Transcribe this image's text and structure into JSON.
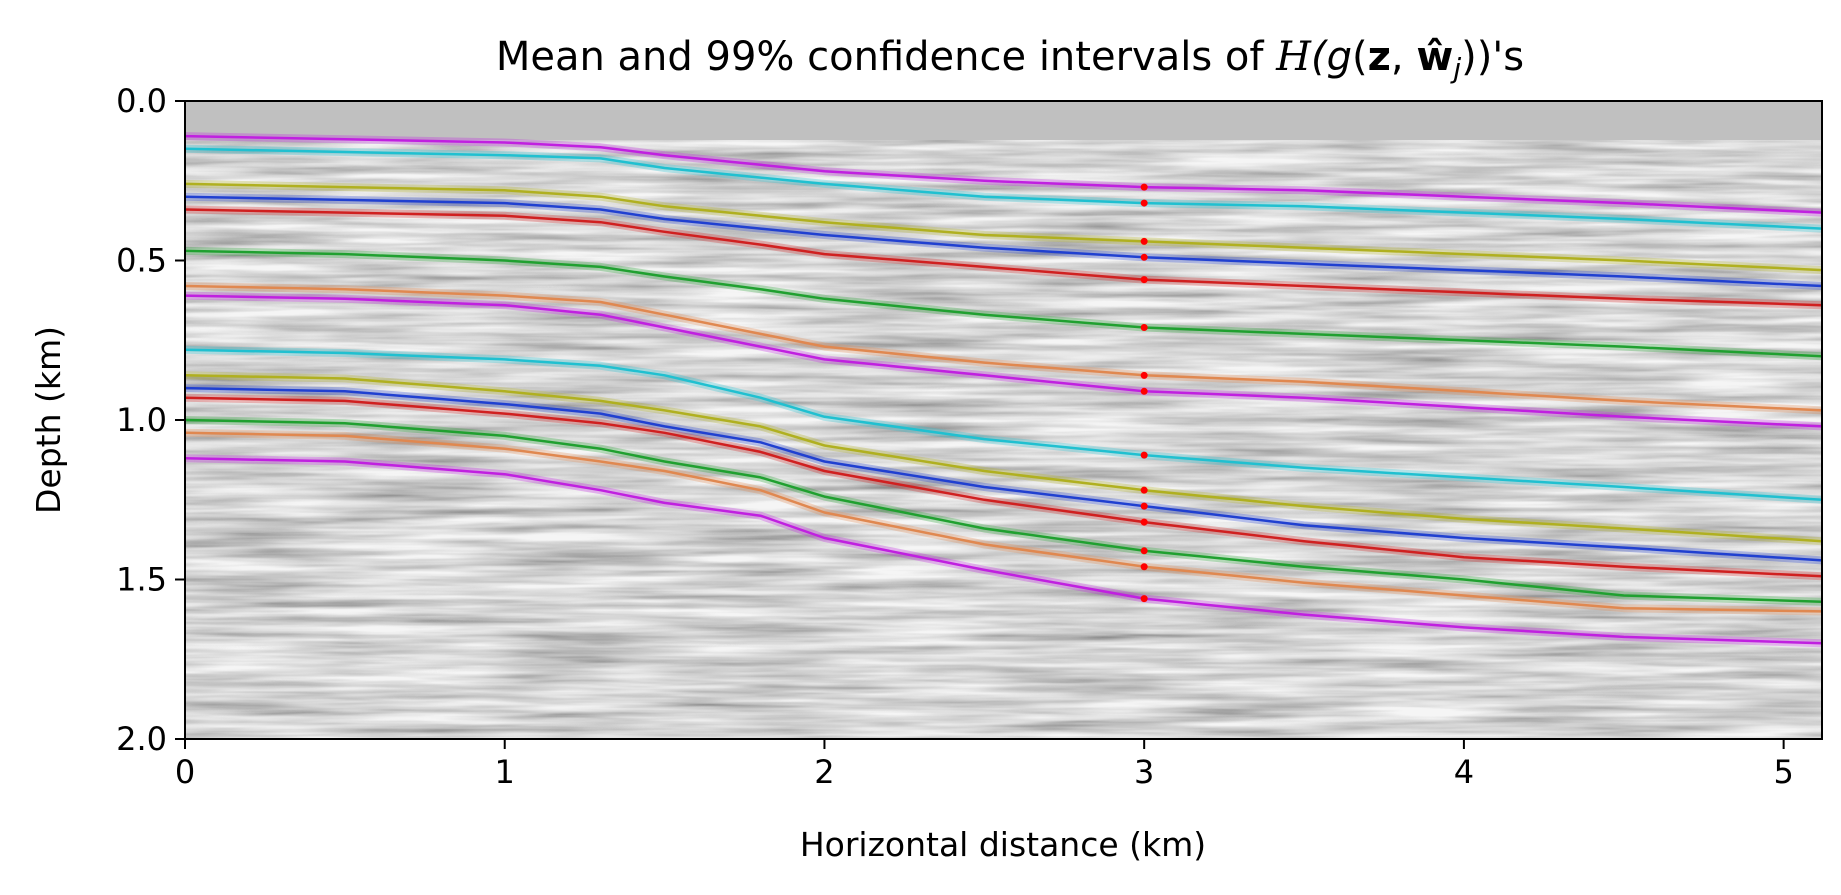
{
  "chart_data": {
    "type": "line",
    "title": "Mean and 99% confidence intervals of H(g(z, ŵj))'s",
    "title_parts": {
      "prefix": "Mean and 99% confidence intervals of ",
      "operator": "H",
      "open": "(g",
      "paren_open": "(",
      "z": "z",
      "comma": ", ",
      "w": "ŵ",
      "sub": "j",
      "paren_close": ")",
      "suffix": ")'s"
    },
    "xlabel": "Horizontal distance (km)",
    "ylabel": "Depth (km)",
    "xlim": [
      0,
      5.12
    ],
    "ylim": [
      0,
      2.0
    ],
    "y_inverted": true,
    "grid": false,
    "background": "grayscale seismic image",
    "xticks": [
      "0",
      "1",
      "2",
      "3",
      "4",
      "5"
    ],
    "yticks": [
      "0.0",
      "0.5",
      "1.0",
      "1.5",
      "2.0"
    ],
    "x": [
      0,
      0.5,
      1.0,
      1.3,
      1.5,
      1.8,
      2.0,
      2.5,
      3.0,
      3.5,
      4.0,
      4.5,
      5.12
    ],
    "series": [
      {
        "color": "#c020e0",
        "values": [
          0.11,
          0.12,
          0.13,
          0.145,
          0.17,
          0.2,
          0.22,
          0.25,
          0.27,
          0.28,
          0.3,
          0.32,
          0.35
        ]
      },
      {
        "color": "#20c0d0",
        "values": [
          0.15,
          0.16,
          0.17,
          0.18,
          0.21,
          0.24,
          0.26,
          0.3,
          0.32,
          0.33,
          0.35,
          0.37,
          0.4
        ]
      },
      {
        "color": "#b0b020",
        "values": [
          0.26,
          0.27,
          0.28,
          0.3,
          0.33,
          0.36,
          0.38,
          0.42,
          0.44,
          0.46,
          0.48,
          0.5,
          0.53
        ]
      },
      {
        "color": "#2040d0",
        "values": [
          0.3,
          0.31,
          0.32,
          0.34,
          0.37,
          0.4,
          0.42,
          0.46,
          0.49,
          0.51,
          0.53,
          0.55,
          0.58
        ]
      },
      {
        "color": "#d02020",
        "values": [
          0.34,
          0.35,
          0.36,
          0.38,
          0.41,
          0.45,
          0.48,
          0.52,
          0.56,
          0.58,
          0.6,
          0.62,
          0.64
        ]
      },
      {
        "color": "#20a030",
        "values": [
          0.47,
          0.48,
          0.5,
          0.52,
          0.55,
          0.59,
          0.62,
          0.67,
          0.71,
          0.73,
          0.75,
          0.77,
          0.8
        ]
      },
      {
        "color": "#e08850",
        "values": [
          0.58,
          0.59,
          0.61,
          0.63,
          0.67,
          0.73,
          0.77,
          0.82,
          0.86,
          0.88,
          0.91,
          0.94,
          0.97
        ]
      },
      {
        "color": "#c020e0",
        "values": [
          0.61,
          0.62,
          0.64,
          0.67,
          0.71,
          0.77,
          0.81,
          0.86,
          0.91,
          0.93,
          0.96,
          0.99,
          1.02
        ]
      },
      {
        "color": "#20c0d0",
        "values": [
          0.78,
          0.79,
          0.81,
          0.83,
          0.86,
          0.93,
          0.99,
          1.06,
          1.11,
          1.15,
          1.18,
          1.21,
          1.25
        ]
      },
      {
        "color": "#b0b020",
        "values": [
          0.86,
          0.87,
          0.91,
          0.94,
          0.97,
          1.02,
          1.08,
          1.16,
          1.22,
          1.27,
          1.31,
          1.34,
          1.38
        ]
      },
      {
        "color": "#2040d0",
        "values": [
          0.9,
          0.91,
          0.95,
          0.98,
          1.02,
          1.07,
          1.13,
          1.21,
          1.27,
          1.33,
          1.37,
          1.4,
          1.44
        ]
      },
      {
        "color": "#d02020",
        "values": [
          0.93,
          0.94,
          0.98,
          1.01,
          1.04,
          1.1,
          1.16,
          1.25,
          1.32,
          1.38,
          1.43,
          1.46,
          1.49
        ]
      },
      {
        "color": "#20a030",
        "values": [
          1.0,
          1.01,
          1.05,
          1.09,
          1.13,
          1.18,
          1.24,
          1.34,
          1.41,
          1.46,
          1.5,
          1.55,
          1.57
        ]
      },
      {
        "color": "#e08850",
        "values": [
          1.04,
          1.05,
          1.09,
          1.13,
          1.16,
          1.22,
          1.29,
          1.39,
          1.46,
          1.51,
          1.55,
          1.59,
          1.6
        ]
      },
      {
        "color": "#c020e0",
        "values": [
          1.12,
          1.13,
          1.17,
          1.22,
          1.26,
          1.3,
          1.37,
          1.47,
          1.56,
          1.61,
          1.65,
          1.68,
          1.7
        ]
      }
    ],
    "markers": {
      "color": "#ff0000",
      "x": 3.0,
      "y": [
        0.27,
        0.32,
        0.44,
        0.49,
        0.56,
        0.71,
        0.86,
        0.91,
        1.11,
        1.22,
        1.27,
        1.32,
        1.41,
        1.46,
        1.56
      ]
    }
  }
}
